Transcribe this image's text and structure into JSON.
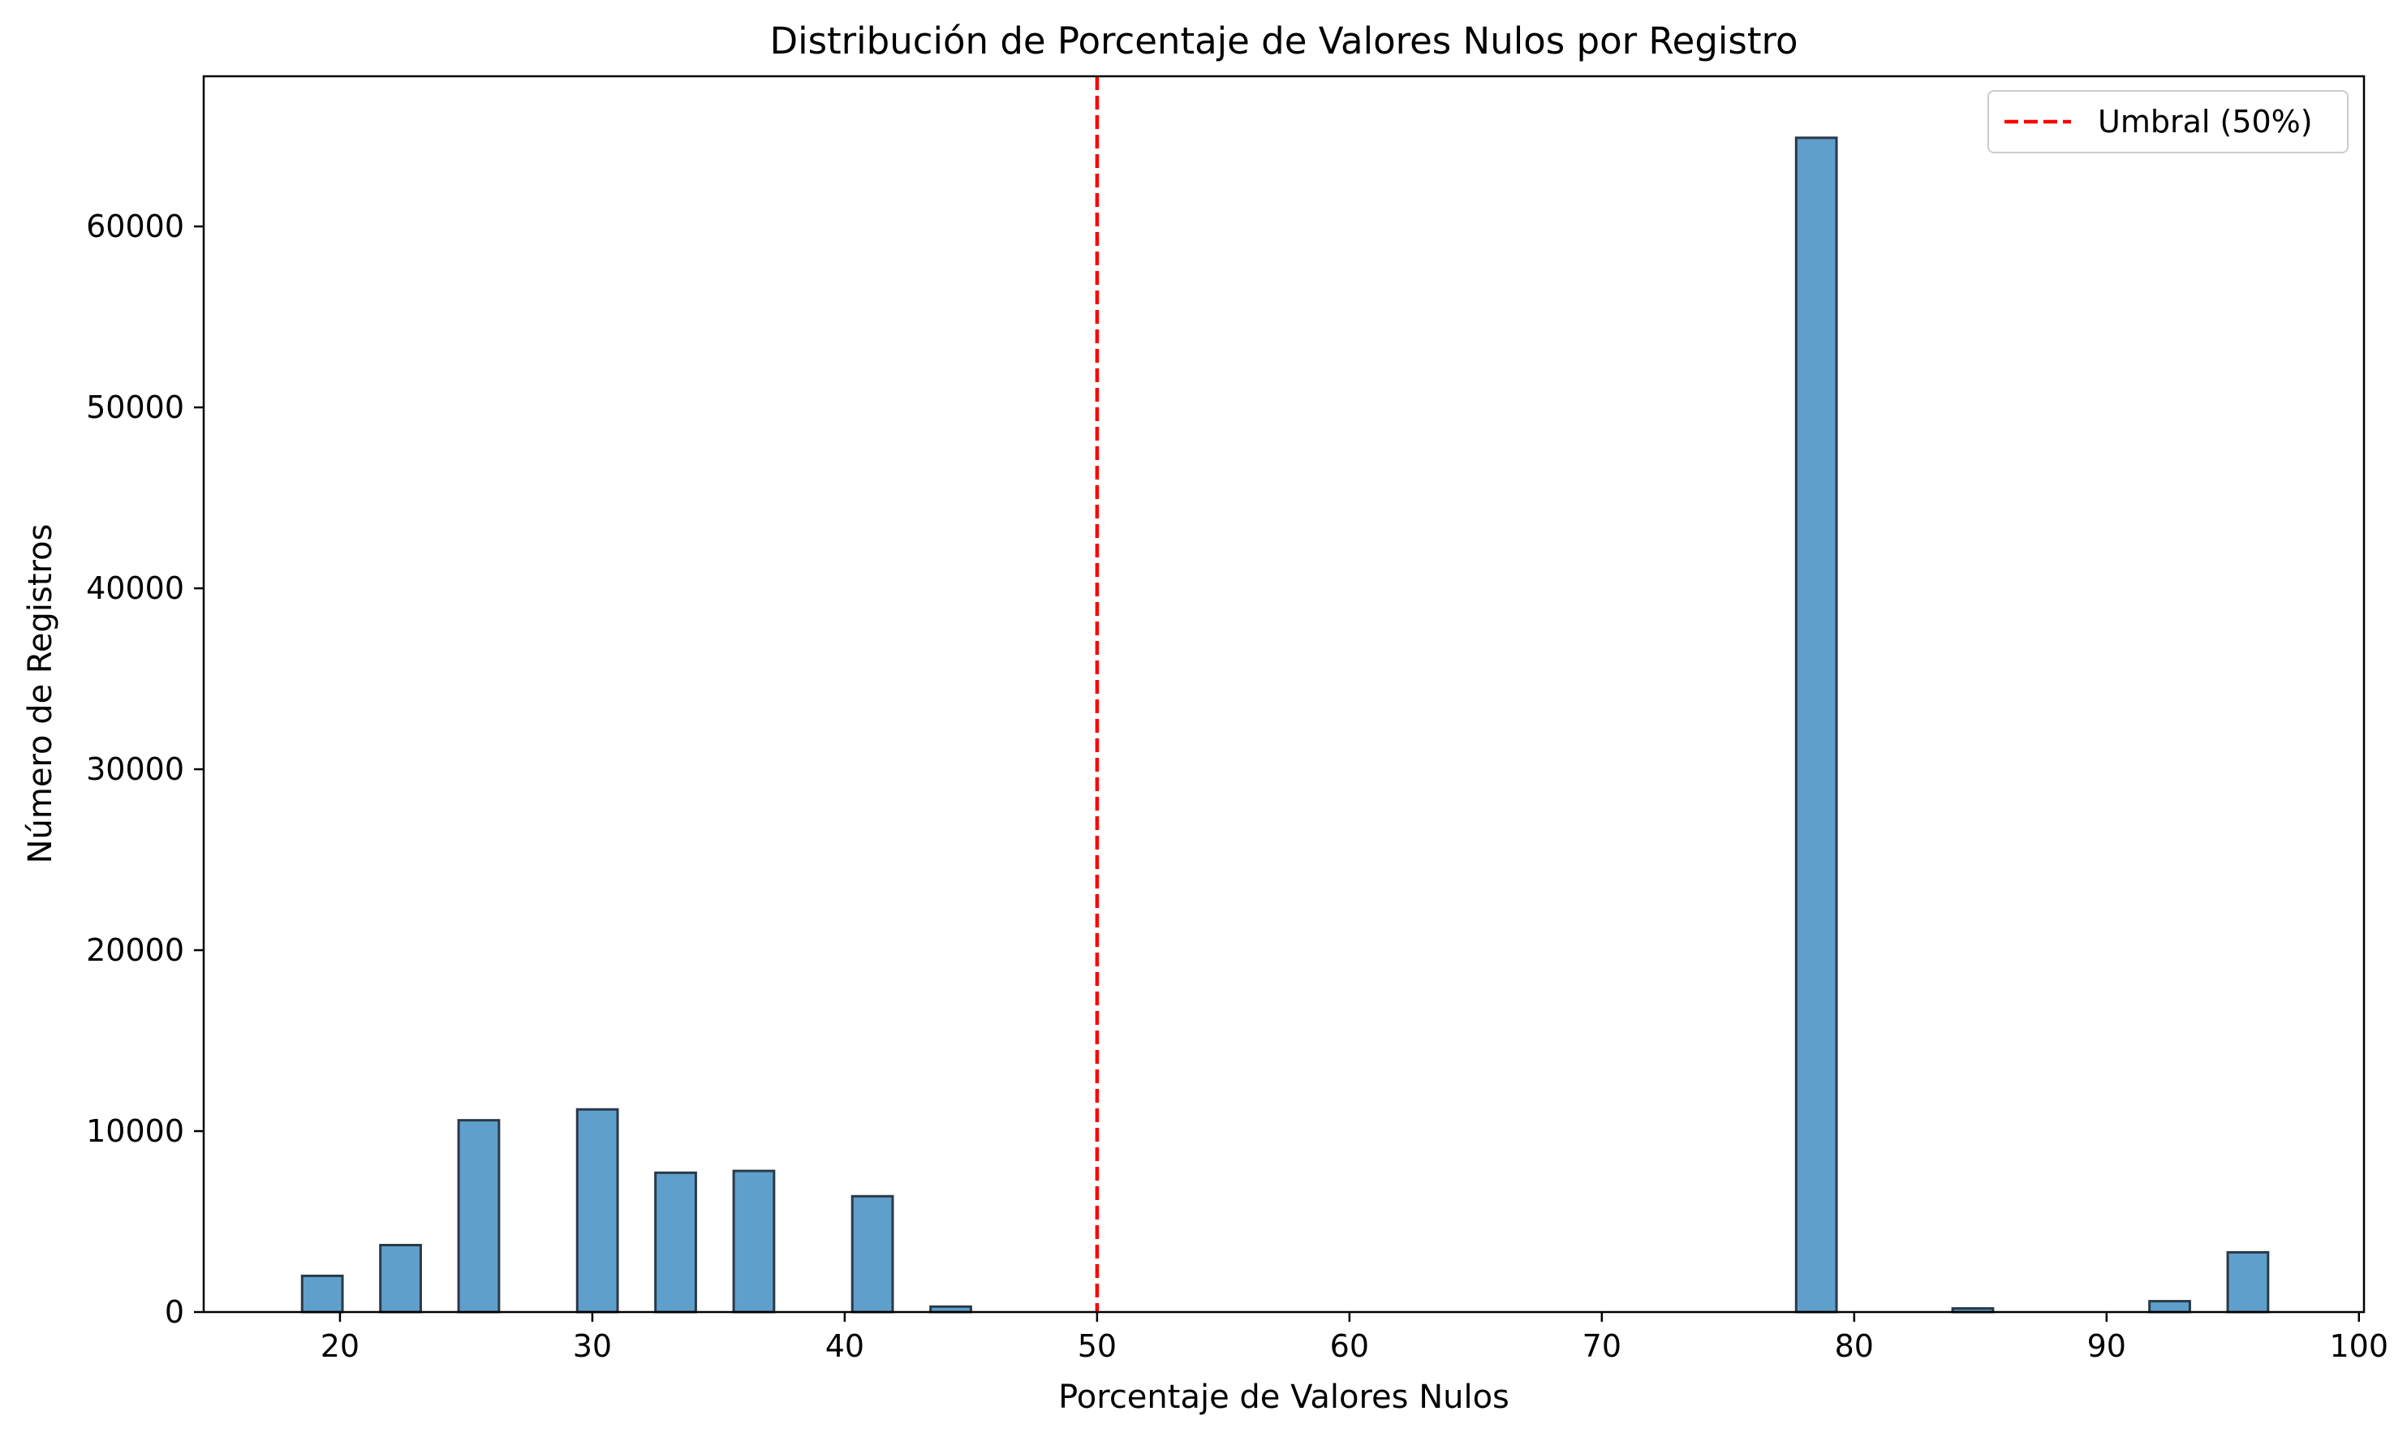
{
  "chart_data": {
    "type": "bar",
    "title": "Distribución de Porcentaje de Valores Nulos por Registro",
    "xlabel": "Porcentaje de Valores Nulos",
    "ylabel": "Número de Registros",
    "xlim": [
      14.6,
      100.2
    ],
    "ylim": [
      0,
      68300
    ],
    "xticks": [
      20,
      30,
      40,
      50,
      60,
      70,
      80,
      90,
      100
    ],
    "yticks": [
      0,
      10000,
      20000,
      30000,
      40000,
      50000,
      60000
    ],
    "grid": false,
    "bar_color": "#5f9fcc",
    "bar_edge_color": "#2a3a47",
    "bins": [
      {
        "x0": 18.5,
        "x1": 20.1,
        "value": 2000
      },
      {
        "x0": 21.6,
        "x1": 23.2,
        "value": 3700
      },
      {
        "x0": 24.7,
        "x1": 26.3,
        "value": 10600
      },
      {
        "x0": 29.4,
        "x1": 31.0,
        "value": 11200
      },
      {
        "x0": 32.5,
        "x1": 34.1,
        "value": 7700
      },
      {
        "x0": 35.6,
        "x1": 37.2,
        "value": 7800
      },
      {
        "x0": 40.3,
        "x1": 41.9,
        "value": 6400
      },
      {
        "x0": 43.4,
        "x1": 45.0,
        "value": 300
      },
      {
        "x0": 77.7,
        "x1": 79.3,
        "value": 64900
      },
      {
        "x0": 83.9,
        "x1": 85.5,
        "value": 200
      },
      {
        "x0": 91.7,
        "x1": 93.3,
        "value": 600
      },
      {
        "x0": 94.8,
        "x1": 96.4,
        "value": 3300
      }
    ],
    "threshold": {
      "x": 50,
      "label": "Umbral (50%)",
      "color": "#ff0000",
      "style": "dashed"
    },
    "legend": {
      "placement": "top-right",
      "entries": [
        "Umbral (50%)"
      ]
    }
  }
}
